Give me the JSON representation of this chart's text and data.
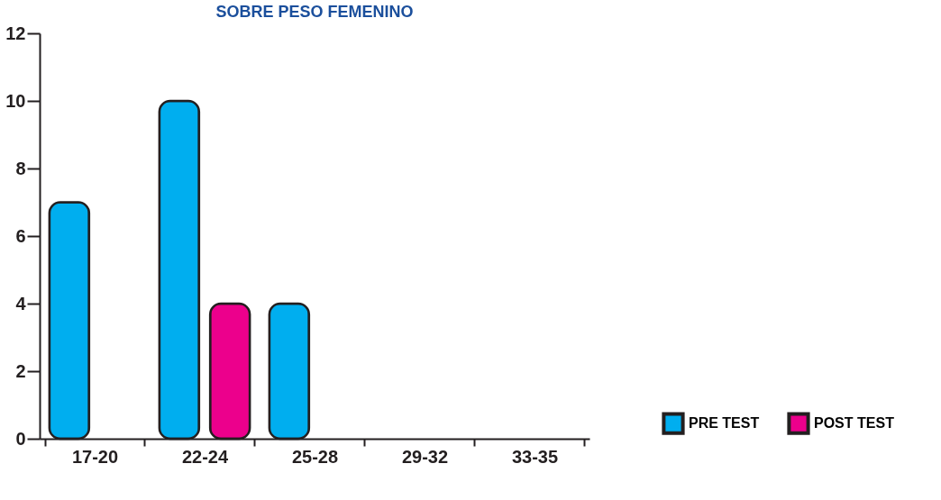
{
  "chart_data": {
    "type": "bar",
    "title": "SOBRE  PESO FEMENINO",
    "categories": [
      "17-20",
      "22-24",
      "25-28",
      "29-32",
      "33-35"
    ],
    "series": [
      {
        "name": "PRE TEST",
        "color": "#00aeef",
        "values": [
          7,
          10,
          4,
          null,
          null
        ]
      },
      {
        "name": "POST TEST",
        "color": "#ec008c",
        "values": [
          null,
          4,
          null,
          null,
          null
        ]
      }
    ],
    "ylim": [
      0,
      12
    ],
    "yticks": [
      0,
      2,
      4,
      6,
      8,
      10,
      12
    ],
    "grid": false,
    "legend": "bottom right"
  }
}
